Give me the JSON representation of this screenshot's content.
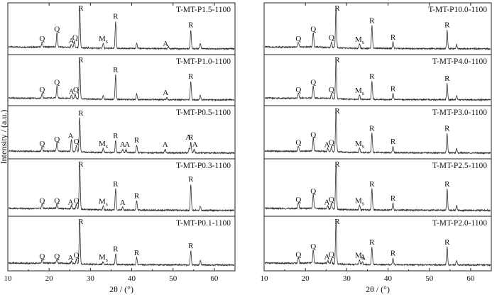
{
  "chart_data": [
    {
      "type": "line",
      "chart_kind": "stacked XRD patterns",
      "xlabel": "2θ / (°)",
      "ylabel": "Intensity / (a.u.)",
      "xlim": [
        10,
        65
      ],
      "x_ticks": [
        10,
        20,
        30,
        40,
        50,
        60
      ],
      "y_ticks": "none",
      "series": [
        {
          "name": "T-MT-P1.5-1100",
          "peaks": [
            [
              18.3,
              0.12
            ],
            [
              21.9,
              0.35
            ],
            [
              25.4,
              0.07
            ],
            [
              26.1,
              0.14
            ],
            [
              27.4,
              1.0
            ],
            [
              33.1,
              0.12
            ],
            [
              36.1,
              0.65
            ],
            [
              41.2,
              0.14
            ],
            [
              48.9,
              0.05
            ],
            [
              54.3,
              0.45
            ],
            [
              56.6,
              0.12
            ]
          ],
          "annotations": [
            {
              "x": 18.3,
              "label": "Q"
            },
            {
              "x": 21.9,
              "label": "Q"
            },
            {
              "x": 25.4,
              "label": "A"
            },
            {
              "x": 26.3,
              "label": "Q"
            },
            {
              "x": 27.7,
              "label": "R"
            },
            {
              "x": 33.1,
              "label": "Ms"
            },
            {
              "x": 36.1,
              "label": "R"
            },
            {
              "x": 48.2,
              "label": "A"
            },
            {
              "x": 54.3,
              "label": "R"
            }
          ]
        },
        {
          "name": "T-MT-P1.0-1100",
          "peaks": [
            [
              18.3,
              0.12
            ],
            [
              21.9,
              0.3
            ],
            [
              25.4,
              0.08
            ],
            [
              26.3,
              0.12
            ],
            [
              27.4,
              1.0
            ],
            [
              33.1,
              0.1
            ],
            [
              36.1,
              0.6
            ],
            [
              41.2,
              0.14
            ],
            [
              48.5,
              0.05
            ],
            [
              54.3,
              0.45
            ],
            [
              56.6,
              0.12
            ]
          ],
          "annotations": [
            {
              "x": 18.3,
              "label": "Q"
            },
            {
              "x": 21.9,
              "label": "Q"
            },
            {
              "x": 25.4,
              "label": "A"
            },
            {
              "x": 26.5,
              "label": "Q"
            },
            {
              "x": 27.7,
              "label": "R"
            },
            {
              "x": 36.1,
              "label": "R"
            },
            {
              "x": 48.2,
              "label": "A"
            },
            {
              "x": 54.3,
              "label": "R"
            }
          ]
        },
        {
          "name": "T-MT-P0.5-1100",
          "peaks": [
            [
              18.3,
              0.1
            ],
            [
              21.9,
              0.2
            ],
            [
              25.4,
              0.28
            ],
            [
              26.6,
              0.15
            ],
            [
              27.4,
              0.8
            ],
            [
              33.1,
              0.1
            ],
            [
              36.1,
              0.28
            ],
            [
              37.8,
              0.08
            ],
            [
              38.6,
              0.08
            ],
            [
              41.2,
              0.18
            ],
            [
              48.1,
              0.08
            ],
            [
              53.9,
              0.1
            ],
            [
              54.3,
              0.25
            ],
            [
              55.1,
              0.08
            ]
          ],
          "annotations": [
            {
              "x": 18.3,
              "label": "Q"
            },
            {
              "x": 21.9,
              "label": "Q"
            },
            {
              "x": 25.2,
              "label": "A"
            },
            {
              "x": 26.6,
              "label": "Q"
            },
            {
              "x": 27.7,
              "label": "R"
            },
            {
              "x": 33.1,
              "label": "Ms"
            },
            {
              "x": 36.1,
              "label": "R"
            },
            {
              "x": 37.8,
              "label": "A"
            },
            {
              "x": 38.9,
              "label": "A"
            },
            {
              "x": 41.2,
              "label": "R"
            },
            {
              "x": 48.1,
              "label": "A"
            },
            {
              "x": 53.7,
              "label": "A"
            },
            {
              "x": 54.3,
              "label": "R"
            },
            {
              "x": 55.3,
              "label": "A"
            }
          ]
        },
        {
          "name": "T-MT-P0.3-1100",
          "peaks": [
            [
              18.3,
              0.1
            ],
            [
              21.9,
              0.1
            ],
            [
              25.4,
              0.07
            ],
            [
              26.6,
              0.1
            ],
            [
              27.4,
              1.0
            ],
            [
              33.1,
              0.08
            ],
            [
              36.1,
              0.45
            ],
            [
              37.8,
              0.06
            ],
            [
              41.2,
              0.2
            ],
            [
              54.3,
              0.55
            ],
            [
              56.6,
              0.1
            ]
          ],
          "annotations": [
            {
              "x": 18.3,
              "label": "Q"
            },
            {
              "x": 21.9,
              "label": "Q"
            },
            {
              "x": 25.2,
              "label": "A"
            },
            {
              "x": 26.6,
              "label": "Q"
            },
            {
              "x": 27.7,
              "label": "R"
            },
            {
              "x": 33.1,
              "label": "Ms"
            },
            {
              "x": 36.1,
              "label": "R"
            },
            {
              "x": 37.8,
              "label": "A"
            },
            {
              "x": 41.2,
              "label": "R"
            },
            {
              "x": 54.3,
              "label": "R"
            }
          ]
        },
        {
          "name": "T-MT-P0.1-1100",
          "peaks": [
            [
              18.3,
              0.08
            ],
            [
              21.9,
              0.08
            ],
            [
              25.4,
              0.05
            ],
            [
              26.6,
              0.1
            ],
            [
              27.4,
              1.0
            ],
            [
              33.1,
              0.06
            ],
            [
              36.1,
              0.25
            ],
            [
              41.2,
              0.16
            ],
            [
              54.3,
              0.32
            ],
            [
              56.6,
              0.1
            ]
          ],
          "annotations": [
            {
              "x": 18.3,
              "label": "Q"
            },
            {
              "x": 21.9,
              "label": "Q"
            },
            {
              "x": 25.2,
              "label": "A"
            },
            {
              "x": 26.6,
              "label": "Q"
            },
            {
              "x": 27.7,
              "label": "R"
            },
            {
              "x": 33.1,
              "label": "Ms"
            },
            {
              "x": 36.1,
              "label": "R"
            },
            {
              "x": 41.2,
              "label": "R"
            },
            {
              "x": 54.3,
              "label": "R"
            }
          ]
        }
      ]
    },
    {
      "type": "line",
      "chart_kind": "stacked XRD patterns",
      "xlabel": "2θ / (°)",
      "ylabel": "Intensity / (a.u.)",
      "xlim": [
        10,
        65
      ],
      "x_ticks": [
        10,
        20,
        30,
        40,
        50,
        60
      ],
      "y_ticks": "none",
      "series": [
        {
          "name": "T-MT-P10.0-1100",
          "peaks": [
            [
              18.3,
              0.12
            ],
            [
              21.9,
              0.35
            ],
            [
              26.3,
              0.14
            ],
            [
              27.4,
              1.0
            ],
            [
              33.1,
              0.1
            ],
            [
              36.1,
              0.55
            ],
            [
              41.2,
              0.15
            ],
            [
              54.3,
              0.45
            ],
            [
              56.6,
              0.1
            ]
          ],
          "annotations": [
            {
              "x": 18.3,
              "label": "Q"
            },
            {
              "x": 21.9,
              "label": "Q"
            },
            {
              "x": 26.3,
              "label": "Q"
            },
            {
              "x": 27.7,
              "label": "R"
            },
            {
              "x": 33.1,
              "label": "Ms"
            },
            {
              "x": 36.1,
              "label": "R"
            },
            {
              "x": 41.2,
              "label": "R"
            },
            {
              "x": 54.3,
              "label": "R"
            }
          ]
        },
        {
          "name": "T-MT-P4.0-1100",
          "peaks": [
            [
              18.3,
              0.12
            ],
            [
              21.9,
              0.3
            ],
            [
              26.3,
              0.12
            ],
            [
              27.4,
              1.0
            ],
            [
              33.1,
              0.1
            ],
            [
              36.1,
              0.45
            ],
            [
              41.2,
              0.15
            ],
            [
              54.3,
              0.4
            ],
            [
              56.6,
              0.1
            ]
          ],
          "annotations": [
            {
              "x": 18.3,
              "label": "Q"
            },
            {
              "x": 21.9,
              "label": "Q"
            },
            {
              "x": 26.3,
              "label": "Q"
            },
            {
              "x": 27.7,
              "label": "R"
            },
            {
              "x": 33.1,
              "label": "Ms"
            },
            {
              "x": 36.1,
              "label": "R"
            },
            {
              "x": 41.2,
              "label": "R"
            },
            {
              "x": 54.3,
              "label": "R"
            }
          ]
        },
        {
          "name": "T-MT-P3.0-1100",
          "peaks": [
            [
              18.3,
              0.12
            ],
            [
              21.9,
              0.3
            ],
            [
              25.4,
              0.07
            ],
            [
              26.3,
              0.12
            ],
            [
              27.4,
              1.0
            ],
            [
              33.1,
              0.1
            ],
            [
              36.1,
              0.45
            ],
            [
              41.2,
              0.15
            ],
            [
              54.3,
              0.45
            ],
            [
              56.6,
              0.1
            ]
          ],
          "annotations": [
            {
              "x": 18.3,
              "label": "Q"
            },
            {
              "x": 21.9,
              "label": "Q"
            },
            {
              "x": 25.2,
              "label": "A"
            },
            {
              "x": 26.3,
              "label": "Q"
            },
            {
              "x": 27.7,
              "label": "R"
            },
            {
              "x": 33.1,
              "label": "Ms"
            },
            {
              "x": 36.1,
              "label": "R"
            },
            {
              "x": 41.2,
              "label": "R"
            },
            {
              "x": 54.3,
              "label": "R"
            }
          ]
        },
        {
          "name": "T-MT-P2.5-1100",
          "peaks": [
            [
              18.3,
              0.12
            ],
            [
              21.9,
              0.3
            ],
            [
              25.4,
              0.07
            ],
            [
              26.3,
              0.12
            ],
            [
              27.4,
              1.0
            ],
            [
              33.1,
              0.1
            ],
            [
              36.1,
              0.45
            ],
            [
              41.2,
              0.15
            ],
            [
              54.3,
              0.45
            ],
            [
              56.6,
              0.1
            ]
          ],
          "annotations": [
            {
              "x": 18.3,
              "label": "Q"
            },
            {
              "x": 21.9,
              "label": "Q"
            },
            {
              "x": 25.2,
              "label": "A"
            },
            {
              "x": 26.3,
              "label": "Q"
            },
            {
              "x": 27.7,
              "label": "R"
            },
            {
              "x": 33.1,
              "label": "Ms"
            },
            {
              "x": 36.1,
              "label": "R"
            },
            {
              "x": 41.2,
              "label": "R"
            },
            {
              "x": 54.3,
              "label": "R"
            }
          ]
        },
        {
          "name": "T-MT-P2.0-1100",
          "peaks": [
            [
              18.3,
              0.12
            ],
            [
              21.9,
              0.3
            ],
            [
              25.4,
              0.07
            ],
            [
              26.3,
              0.12
            ],
            [
              27.4,
              1.0
            ],
            [
              33.1,
              0.1
            ],
            [
              33.8,
              0.06
            ],
            [
              36.1,
              0.4
            ],
            [
              41.2,
              0.15
            ],
            [
              54.3,
              0.4
            ],
            [
              56.6,
              0.1
            ]
          ],
          "annotations": [
            {
              "x": 18.3,
              "label": "Q"
            },
            {
              "x": 21.9,
              "label": "Q"
            },
            {
              "x": 25.2,
              "label": "A"
            },
            {
              "x": 26.3,
              "label": "Q"
            },
            {
              "x": 27.7,
              "label": "R"
            },
            {
              "x": 33.1,
              "label": "Ms"
            },
            {
              "x": 33.9,
              "label": "A"
            },
            {
              "x": 36.1,
              "label": "R"
            },
            {
              "x": 41.2,
              "label": "R"
            },
            {
              "x": 54.3,
              "label": "R"
            }
          ]
        }
      ]
    }
  ]
}
